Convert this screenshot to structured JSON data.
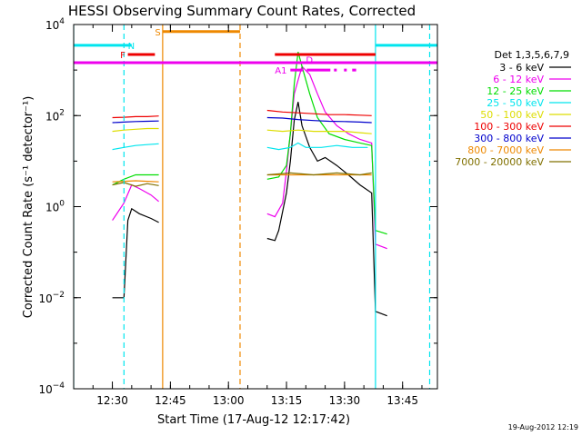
{
  "chart_data": {
    "type": "line",
    "title": "HESSI Observing Summary Count Rates, Corrected",
    "xlabel": "Start Time (17-Aug-12 12:17:42)",
    "ylabel": "Corrected Count Rate (s⁻¹ detector⁻¹)",
    "xlim": [
      "12:20",
      "13:54"
    ],
    "ylim": [
      0.0001,
      10000
    ],
    "y_scale": "log",
    "x_ticks": [
      "12:30",
      "12:45",
      "13:00",
      "13:15",
      "13:30",
      "13:45"
    ],
    "y_ticks": [
      {
        "value": 0.0001,
        "base": "10",
        "exp": "−4"
      },
      {
        "value": 0.01,
        "base": "10",
        "exp": "−2"
      },
      {
        "value": 1,
        "base": "10",
        "exp": "0"
      },
      {
        "value": 100,
        "base": "10",
        "exp": "2"
      },
      {
        "value": 10000,
        "base": "10",
        "exp": "4"
      }
    ],
    "legend_title": "Det 1,3,5,6,7,9",
    "legend_position": "right",
    "grid": false,
    "timestamp": "19-Aug-2012 12:19",
    "vlines": [
      {
        "time": "12:20",
        "color": "#00e5ee",
        "style": "solid"
      },
      {
        "time": "12:33",
        "color": "#00e5ee",
        "style": "dashed"
      },
      {
        "time": "12:43",
        "color": "#ee8800",
        "style": "solid"
      },
      {
        "time": "13:03",
        "color": "#ee8800",
        "style": "dashed"
      },
      {
        "time": "13:38",
        "color": "#00e5ee",
        "style": "solid"
      },
      {
        "time": "13:52",
        "color": "#00e5ee",
        "style": "dashed"
      }
    ],
    "flag_bars": [
      {
        "label": "",
        "color": "#00e5ee",
        "start": "12:20",
        "end": "12:35",
        "level": 3500
      },
      {
        "label": "N",
        "color": "#00e5ee",
        "start": "",
        "end": "",
        "level": 3500,
        "label_time": "12:34"
      },
      {
        "label": "",
        "color": "#00e5ee",
        "start": "13:38",
        "end": "13:54",
        "level": 3500
      },
      {
        "label": "S",
        "color": "#ee8800",
        "start": "12:43",
        "end": "13:03",
        "level": 7000,
        "label_time": "12:41"
      },
      {
        "label": "F",
        "color": "#ee0000",
        "start": "12:34",
        "end": "12:41",
        "level": 2200,
        "label_time": "12:32"
      },
      {
        "label": "",
        "color": "#ee0000",
        "start": "13:12",
        "end": "13:38",
        "level": 2200
      },
      {
        "label": "",
        "color": "#ee00ee",
        "start": "12:20",
        "end": "13:54",
        "level": 1450
      },
      {
        "label": "D",
        "color": "#ee00ee",
        "start": "",
        "end": "",
        "level": 1700,
        "label_time": "13:20"
      },
      {
        "label": "A1",
        "color": "#ee00ee",
        "start": "13:16",
        "end": "13:33",
        "level": 1000,
        "label_time": "13:12"
      }
    ],
    "series": [
      {
        "name": "3 - 6 keV",
        "color": "#000000",
        "segments": [
          [
            [
              "12:30",
              0.01
            ],
            [
              "12:33",
              0.01
            ],
            [
              "12:34",
              0.5
            ],
            [
              "12:35",
              0.9
            ],
            [
              "12:37",
              0.7
            ],
            [
              "12:40",
              0.55
            ],
            [
              "12:42",
              0.45
            ]
          ],
          [
            [
              "13:10",
              0.2
            ],
            [
              "13:12",
              0.18
            ],
            [
              "13:13",
              0.3
            ],
            [
              "13:15",
              2
            ],
            [
              "13:16",
              10
            ],
            [
              "13:17",
              80
            ],
            [
              "13:18",
              200
            ],
            [
              "13:19",
              60
            ],
            [
              "13:21",
              20
            ],
            [
              "13:23",
              10
            ],
            [
              "13:25",
              12
            ],
            [
              "13:28",
              8
            ],
            [
              "13:31",
              5
            ],
            [
              "13:34",
              3
            ],
            [
              "13:37",
              2
            ],
            [
              "13:38",
              0.005
            ],
            [
              "13:41",
              0.004
            ]
          ]
        ]
      },
      {
        "name": "6 - 12 keV",
        "color": "#ee00ee",
        "segments": [
          [
            [
              "12:30",
              0.5
            ],
            [
              "12:33",
              1.2
            ],
            [
              "12:35",
              3
            ],
            [
              "12:37",
              2.5
            ],
            [
              "12:40",
              1.8
            ],
            [
              "12:42",
              1.3
            ]
          ],
          [
            [
              "13:10",
              0.7
            ],
            [
              "13:12",
              0.6
            ],
            [
              "13:14",
              1.2
            ],
            [
              "13:15",
              6
            ],
            [
              "13:16",
              40
            ],
            [
              "13:17",
              300
            ],
            [
              "13:18",
              600
            ],
            [
              "13:19",
              1200
            ],
            [
              "13:21",
              800
            ],
            [
              "13:23",
              300
            ],
            [
              "13:25",
              120
            ],
            [
              "13:28",
              60
            ],
            [
              "13:31",
              40
            ],
            [
              "13:34",
              30
            ],
            [
              "13:37",
              25
            ],
            [
              "13:38",
              0.15
            ],
            [
              "13:41",
              0.12
            ]
          ]
        ]
      },
      {
        "name": "12 - 25 keV",
        "color": "#00dd00",
        "segments": [
          [
            [
              "12:30",
              3
            ],
            [
              "12:33",
              4
            ],
            [
              "12:36",
              5
            ],
            [
              "12:39",
              5
            ],
            [
              "12:42",
              5
            ]
          ],
          [
            [
              "13:10",
              4
            ],
            [
              "13:13",
              4.5
            ],
            [
              "13:15",
              8
            ],
            [
              "13:16",
              40
            ],
            [
              "13:17",
              500
            ],
            [
              "13:18",
              2500
            ],
            [
              "13:19",
              1200
            ],
            [
              "13:21",
              300
            ],
            [
              "13:23",
              90
            ],
            [
              "13:26",
              40
            ],
            [
              "13:30",
              30
            ],
            [
              "13:34",
              25
            ],
            [
              "13:37",
              22
            ],
            [
              "13:38",
              0.3
            ],
            [
              "13:41",
              0.25
            ]
          ]
        ]
      },
      {
        "name": "25 - 50 keV",
        "color": "#00e5ee",
        "segments": [
          [
            [
              "12:30",
              18
            ],
            [
              "12:33",
              20
            ],
            [
              "12:36",
              22
            ],
            [
              "12:39",
              23
            ],
            [
              "12:42",
              24
            ]
          ],
          [
            [
              "13:10",
              20
            ],
            [
              "13:13",
              18
            ],
            [
              "13:16",
              20
            ],
            [
              "13:18",
              25
            ],
            [
              "13:20",
              20
            ],
            [
              "13:24",
              20
            ],
            [
              "13:28",
              22
            ],
            [
              "13:32",
              20
            ],
            [
              "13:36",
              20
            ]
          ]
        ]
      },
      {
        "name": "50 - 100 keV",
        "color": "#dddd00",
        "segments": [
          [
            [
              "12:30",
              45
            ],
            [
              "12:33",
              48
            ],
            [
              "12:36",
              50
            ],
            [
              "12:39",
              52
            ],
            [
              "12:42",
              52
            ]
          ],
          [
            [
              "13:10",
              48
            ],
            [
              "13:14",
              45
            ],
            [
              "13:18",
              48
            ],
            [
              "13:22",
              45
            ],
            [
              "13:26",
              45
            ],
            [
              "13:30",
              45
            ],
            [
              "13:34",
              42
            ],
            [
              "13:37",
              40
            ]
          ]
        ]
      },
      {
        "name": "100 - 300 keV",
        "color": "#ee0000",
        "segments": [
          [
            [
              "12:30",
              90
            ],
            [
              "12:33",
              92
            ],
            [
              "12:36",
              95
            ],
            [
              "12:39",
              95
            ],
            [
              "12:42",
              98
            ]
          ],
          [
            [
              "13:10",
              130
            ],
            [
              "13:14",
              120
            ],
            [
              "13:18",
              115
            ],
            [
              "13:22",
              110
            ],
            [
              "13:26",
              105
            ],
            [
              "13:30",
              105
            ],
            [
              "13:34",
              102
            ],
            [
              "13:37",
              100
            ]
          ]
        ]
      },
      {
        "name": "300 - 800 keV",
        "color": "#0000cc",
        "segments": [
          [
            [
              "12:30",
              70
            ],
            [
              "12:33",
              72
            ],
            [
              "12:36",
              74
            ],
            [
              "12:39",
              75
            ],
            [
              "12:42",
              76
            ]
          ],
          [
            [
              "13:10",
              90
            ],
            [
              "13:14",
              88
            ],
            [
              "13:18",
              82
            ],
            [
              "13:22",
              78
            ],
            [
              "13:26",
              75
            ],
            [
              "13:30",
              74
            ],
            [
              "13:34",
              72
            ],
            [
              "13:37",
              70
            ]
          ]
        ]
      },
      {
        "name": "800 - 7000 keV",
        "color": "#ee8800",
        "segments": [
          [
            [
              "12:30",
              3.5
            ],
            [
              "12:33",
              3.6
            ],
            [
              "12:36",
              3.7
            ],
            [
              "12:39",
              3.6
            ],
            [
              "12:42",
              3.5
            ]
          ],
          [
            [
              "13:10",
              5
            ],
            [
              "13:16",
              5
            ],
            [
              "13:22",
              5
            ],
            [
              "13:28",
              5
            ],
            [
              "13:34",
              5
            ],
            [
              "13:37",
              5
            ]
          ]
        ]
      },
      {
        "name": "7000 - 20000 keV",
        "color": "#807000",
        "segments": [
          [
            [
              "12:30",
              3
            ],
            [
              "12:33",
              3.4
            ],
            [
              "12:36",
              2.8
            ],
            [
              "12:39",
              3.2
            ],
            [
              "12:42",
              2.9
            ]
          ],
          [
            [
              "13:10",
              5
            ],
            [
              "13:16",
              5.5
            ],
            [
              "13:22",
              5
            ],
            [
              "13:28",
              5.5
            ],
            [
              "13:34",
              5
            ],
            [
              "13:37",
              5.5
            ]
          ]
        ]
      }
    ]
  }
}
